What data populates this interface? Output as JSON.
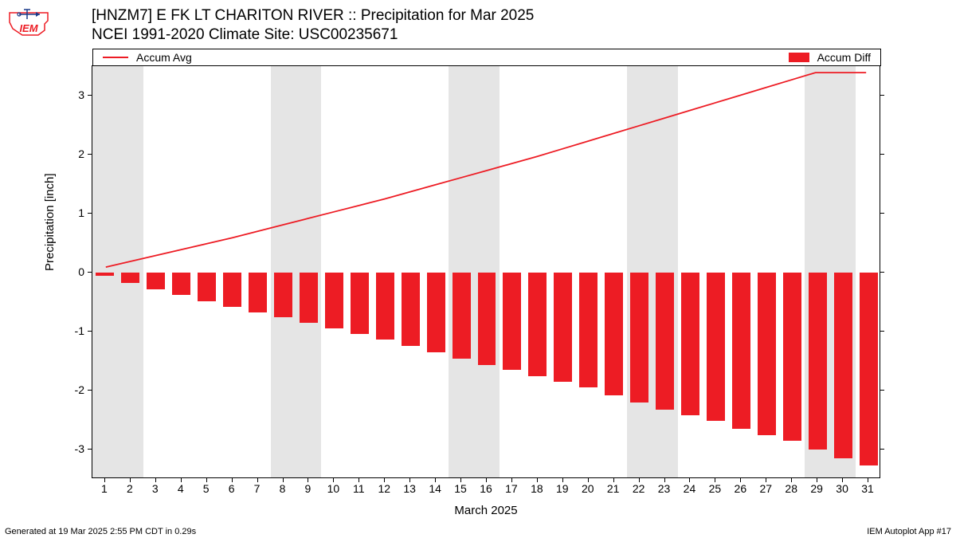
{
  "logo": {
    "text": "IEM",
    "outline_color": "#ed1c24",
    "text_color": "#ed1c24",
    "arrow_color": "#1a3a8a"
  },
  "title": {
    "line1": "[HNZM7] E FK LT CHARITON RIVER :: Precipitation for Mar 2025",
    "line2": "NCEI 1991-2020 Climate Site: USC00235671"
  },
  "legend": {
    "left_label": "Accum Avg",
    "right_label": "Accum Diff",
    "line_color": "#ed1c24",
    "bar_color": "#ed1c24"
  },
  "chart": {
    "type": "bar+line",
    "background_color": "#ffffff",
    "weekend_band_color": "#e5e5e5",
    "bar_color": "#ed1c24",
    "line_color": "#ed1c24",
    "line_width": 1.8,
    "bar_width_ratio": 0.72,
    "ylabel": "Precipitation [inch]",
    "xlabel": "March 2025",
    "ylim": [
      -3.5,
      3.5
    ],
    "yticks": [
      -3,
      -2,
      -1,
      0,
      1,
      2,
      3
    ],
    "xlim": [
      0.5,
      31.5
    ],
    "xticks": [
      1,
      2,
      3,
      4,
      5,
      6,
      7,
      8,
      9,
      10,
      11,
      12,
      13,
      14,
      15,
      16,
      17,
      18,
      19,
      20,
      21,
      22,
      23,
      24,
      25,
      26,
      27,
      28,
      29,
      30,
      31
    ],
    "weekend_days": [
      1,
      2,
      8,
      9,
      15,
      16,
      22,
      23,
      29,
      30
    ],
    "days": [
      1,
      2,
      3,
      4,
      5,
      6,
      7,
      8,
      9,
      10,
      11,
      12,
      13,
      14,
      15,
      16,
      17,
      18,
      19,
      20,
      21,
      22,
      23,
      24,
      25,
      26,
      27,
      28,
      29,
      30,
      31
    ],
    "accum_avg": [
      0.08,
      0.18,
      0.28,
      0.38,
      0.48,
      0.58,
      0.69,
      0.8,
      0.91,
      1.02,
      1.13,
      1.24,
      1.36,
      1.48,
      1.6,
      1.72,
      1.84,
      1.96,
      2.09,
      2.22,
      2.35,
      2.48,
      2.61,
      2.74,
      2.87,
      3.0,
      3.13,
      3.26,
      3.39,
      3.39,
      3.39
    ],
    "accum_diff": [
      -0.05,
      -0.18,
      -0.28,
      -0.38,
      -0.48,
      -0.58,
      -0.67,
      -0.76,
      -0.85,
      -0.94,
      -1.04,
      -1.14,
      -1.24,
      -1.35,
      -1.46,
      -1.57,
      -1.65,
      -1.75,
      -1.85,
      -1.95,
      -2.08,
      -2.2,
      -2.32,
      -2.42,
      -2.52,
      -2.65,
      -2.75,
      -2.85,
      -3.0,
      -3.15,
      -3.27
    ]
  },
  "footer": {
    "left": "Generated at 19 Mar 2025 2:55 PM CDT in 0.29s",
    "right": "IEM Autoplot App #17"
  }
}
